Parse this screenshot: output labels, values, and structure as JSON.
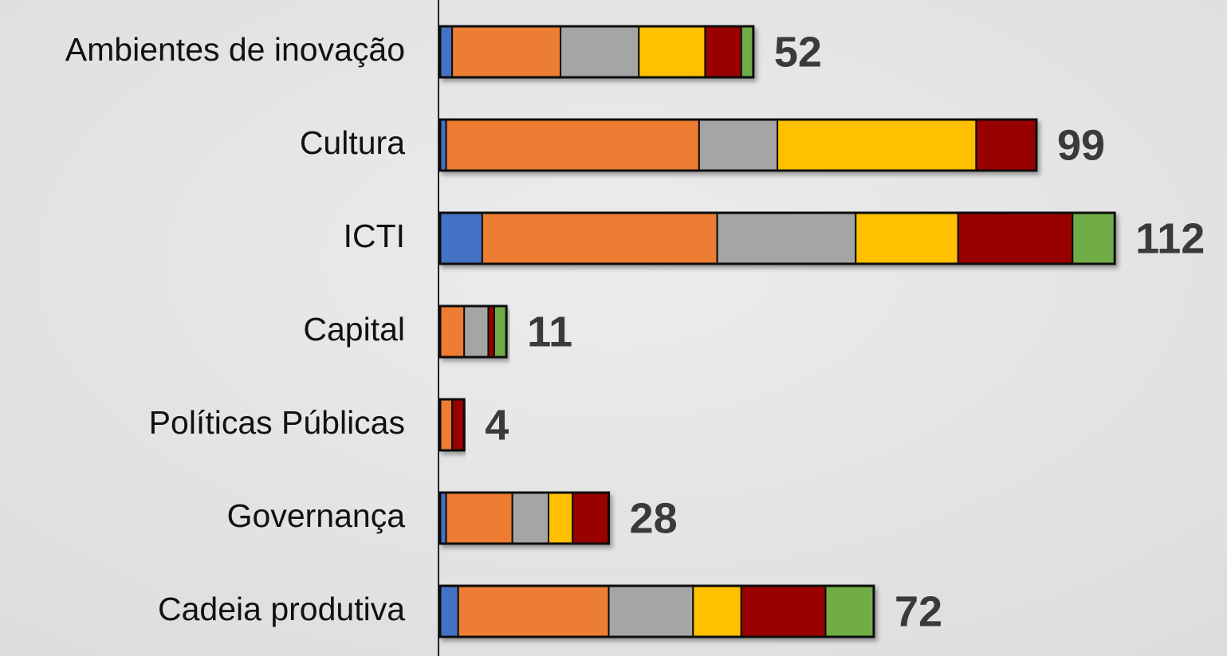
{
  "chart_data": {
    "type": "bar",
    "orientation": "horizontal",
    "stacked": true,
    "categories": [
      "Ambientes de inovação",
      "Cultura",
      "ICTI",
      "Capital",
      "Políticas Públicas",
      "Governança",
      "Cadeia produtiva"
    ],
    "series": [
      {
        "color": "#4472c4",
        "values": [
          2,
          1,
          7,
          0,
          0,
          1,
          3
        ]
      },
      {
        "color": "#ed7d31",
        "values": [
          18,
          42,
          39,
          4,
          2,
          11,
          25
        ]
      },
      {
        "color": "#a5a5a5",
        "values": [
          13,
          13,
          23,
          4,
          0,
          6,
          14
        ]
      },
      {
        "color": "#ffc000",
        "values": [
          11,
          33,
          17,
          0,
          0,
          4,
          8
        ]
      },
      {
        "color": "#990000",
        "values": [
          6,
          10,
          19,
          1,
          2,
          6,
          14
        ]
      },
      {
        "color": "#70ad47",
        "values": [
          2,
          0,
          7,
          2,
          0,
          0,
          8
        ]
      }
    ],
    "totals": [
      52,
      99,
      112,
      11,
      4,
      28,
      72
    ],
    "xlim": [
      0,
      120
    ]
  }
}
